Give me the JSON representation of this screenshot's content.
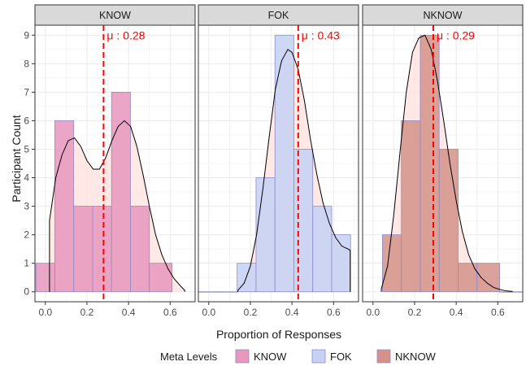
{
  "chart_data": {
    "type": "bar",
    "subtype": "faceted-histogram-with-density",
    "xlabel": "Proportion of Responses",
    "ylabel": "Participant Count",
    "xlim": [
      -0.05,
      0.72
    ],
    "ylim": [
      -0.35,
      9.35
    ],
    "x_ticks": [
      0.0,
      0.2,
      0.4,
      0.6
    ],
    "x_tick_labels": [
      "0.0",
      "0.2",
      "0.4",
      "0.6"
    ],
    "y_ticks": [
      0,
      1,
      2,
      3,
      4,
      5,
      6,
      7,
      8,
      9
    ],
    "y_tick_labels": [
      "0",
      "1",
      "2",
      "3",
      "4",
      "5",
      "6",
      "7",
      "8",
      "9"
    ],
    "grid": true,
    "bin_width": 0.0909,
    "mean_line_color": "#ff0000",
    "density_fill_color": "#ffe4e1",
    "bar_outline_color": "#8c8cc8",
    "legend": {
      "title": "Meta Levels",
      "position": "bottom",
      "entries": [
        {
          "label": "KNOW",
          "color": "#e897bd"
        },
        {
          "label": "FOK",
          "color": "#c6d1f5"
        },
        {
          "label": "NKNOW",
          "color": "#d4928a"
        }
      ]
    },
    "facets": [
      {
        "strip": "KNOW",
        "color": "#e897bd",
        "mean": 0.28,
        "mean_label": "μ : 0.28",
        "bins": [
          {
            "x0": -0.0455,
            "x1": 0.0455,
            "count": 1
          },
          {
            "x0": 0.0455,
            "x1": 0.1364,
            "count": 6
          },
          {
            "x0": 0.1364,
            "x1": 0.2273,
            "count": 3
          },
          {
            "x0": 0.2273,
            "x1": 0.3182,
            "count": 3
          },
          {
            "x0": 0.3182,
            "x1": 0.4091,
            "count": 7
          },
          {
            "x0": 0.4091,
            "x1": 0.5,
            "count": 3
          },
          {
            "x0": 0.5,
            "x1": 0.6091,
            "count": 1
          }
        ],
        "density_x": [
          0.02,
          0.05,
          0.08,
          0.11,
          0.14,
          0.17,
          0.2,
          0.23,
          0.26,
          0.29,
          0.32,
          0.35,
          0.38,
          0.41,
          0.44,
          0.47,
          0.5,
          0.53,
          0.56,
          0.59,
          0.62,
          0.65,
          0.67
        ],
        "density_y": [
          2.5,
          4.0,
          4.8,
          5.3,
          5.4,
          5.1,
          4.6,
          4.3,
          4.3,
          4.7,
          5.3,
          5.8,
          6.0,
          5.8,
          5.1,
          4.1,
          3.0,
          2.0,
          1.3,
          0.8,
          0.45,
          0.2,
          0.05
        ]
      },
      {
        "strip": "FOK",
        "color": "#c6d1f5",
        "mean": 0.43,
        "mean_label": "μ : 0.43",
        "bins": [
          {
            "x0": -0.05,
            "x1": 0.1364,
            "count": 0
          },
          {
            "x0": 0.1364,
            "x1": 0.2273,
            "count": 1
          },
          {
            "x0": 0.2273,
            "x1": 0.3182,
            "count": 4
          },
          {
            "x0": 0.3182,
            "x1": 0.4091,
            "count": 9
          },
          {
            "x0": 0.4091,
            "x1": 0.5,
            "count": 5
          },
          {
            "x0": 0.5,
            "x1": 0.5909,
            "count": 3
          },
          {
            "x0": 0.5909,
            "x1": 0.6818,
            "count": 2
          }
        ],
        "density_x": [
          0.14,
          0.17,
          0.2,
          0.23,
          0.26,
          0.29,
          0.32,
          0.35,
          0.38,
          0.4,
          0.43,
          0.46,
          0.49,
          0.52,
          0.55,
          0.58,
          0.61,
          0.64,
          0.67,
          0.68
        ],
        "density_y": [
          0.05,
          0.3,
          0.9,
          2.0,
          3.6,
          5.4,
          7.1,
          8.1,
          8.5,
          8.4,
          7.8,
          6.7,
          5.3,
          4.1,
          3.1,
          2.4,
          1.9,
          1.6,
          1.5,
          1.45
        ]
      },
      {
        "strip": "NKNOW",
        "color": "#d4928a",
        "mean": 0.29,
        "mean_label": "μ : 0.29",
        "bins": [
          {
            "x0": 0.0455,
            "x1": 0.1364,
            "count": 2
          },
          {
            "x0": 0.1364,
            "x1": 0.2273,
            "count": 6
          },
          {
            "x0": 0.2273,
            "x1": 0.3182,
            "count": 9
          },
          {
            "x0": 0.3182,
            "x1": 0.4091,
            "count": 5
          },
          {
            "x0": 0.4091,
            "x1": 0.5,
            "count": 1
          },
          {
            "x0": 0.5,
            "x1": 0.6091,
            "count": 1
          },
          {
            "x0": 0.6091,
            "x1": 0.72,
            "count": 0
          }
        ],
        "density_x": [
          0.04,
          0.07,
          0.1,
          0.13,
          0.16,
          0.19,
          0.22,
          0.25,
          0.28,
          0.31,
          0.34,
          0.37,
          0.4,
          0.43,
          0.46,
          0.49,
          0.52,
          0.55,
          0.58,
          0.61,
          0.64,
          0.67
        ],
        "density_y": [
          0.1,
          0.9,
          2.7,
          4.9,
          7.0,
          8.4,
          8.9,
          9.0,
          8.5,
          7.4,
          6.0,
          4.5,
          3.2,
          2.1,
          1.3,
          0.8,
          0.5,
          0.3,
          0.15,
          0.08,
          0.03,
          0.01
        ]
      }
    ]
  }
}
